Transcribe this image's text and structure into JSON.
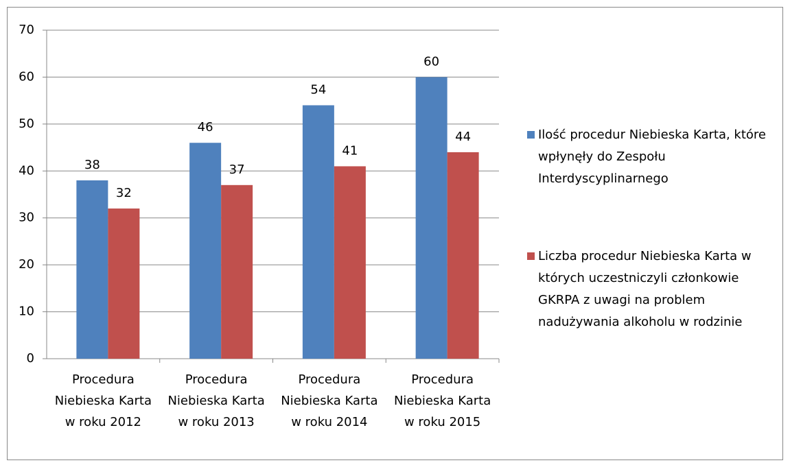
{
  "chart_data": {
    "type": "bar",
    "categories": [
      "Procedura Niebieska Karta w roku 2012",
      "Procedura Niebieska Karta w roku 2013",
      "Procedura Niebieska Karta w roku 2014",
      "Procedura Niebieska Karta w roku 2015"
    ],
    "series": [
      {
        "name": "Ilość procedur Niebieska Karta, które wpłynęły do Zespołu Interdyscyplinarnego",
        "color": "#4f81bd",
        "values": [
          38,
          46,
          54,
          60
        ]
      },
      {
        "name": "Liczba procedur Niebieska Karta w których uczestniczyli członkowie GKRPA z uwagi na problem nadużywania alkoholu w rodzinie",
        "color": "#c0504d",
        "values": [
          32,
          37,
          41,
          44
        ]
      }
    ],
    "ylim": [
      0,
      70
    ],
    "yticks": [
      0,
      10,
      20,
      30,
      40,
      50,
      60,
      70
    ],
    "grid": true,
    "legend": "right"
  }
}
